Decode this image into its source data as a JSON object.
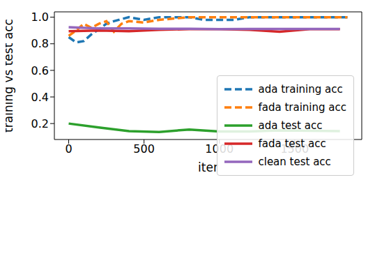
{
  "chart_data": {
    "type": "line",
    "x_label": "iter",
    "y_label": "training vs test acc",
    "xlim": [
      -95,
      1945
    ],
    "xticks": [
      0,
      500,
      1000,
      1500
    ],
    "ylim": [
      0.08,
      1.04
    ],
    "yticks": [
      0.2,
      0.4,
      0.6,
      0.8,
      {
        "value": 1,
        "label": "1.0"
      }
    ],
    "grid": true,
    "legend": "right",
    "series": [
      {
        "name": "ada training acc",
        "color": "#1f77b4",
        "line_style": "dashed",
        "x": [
          0,
          50,
          100,
          150,
          200,
          250,
          300,
          400,
          500,
          600,
          800,
          900,
          1000,
          1100,
          1200,
          1400,
          1600,
          1850
        ],
        "values": [
          0.85,
          0.81,
          0.82,
          0.87,
          0.91,
          0.95,
          0.97,
          1.0,
          0.98,
          1.0,
          1.0,
          0.98,
          0.98,
          0.98,
          1.0,
          1.0,
          1.0,
          1.0
        ]
      },
      {
        "name": "fada training acc",
        "color": "#ff7f0e",
        "line_style": "dashed",
        "x": [
          0,
          50,
          100,
          150,
          200,
          250,
          300,
          350,
          400,
          500,
          600,
          700,
          800,
          1000,
          1200,
          1400,
          1600,
          1850
        ],
        "values": [
          0.86,
          0.9,
          0.95,
          0.92,
          0.95,
          0.97,
          0.89,
          0.95,
          0.97,
          0.96,
          0.98,
          0.99,
          1.0,
          1.0,
          1.0,
          1.0,
          1.0,
          1.0
        ]
      },
      {
        "name": "ada test acc",
        "color": "#2ca02c",
        "line_style": "solid",
        "x": [
          0,
          200,
          400,
          600,
          800,
          1000,
          1200,
          1400,
          1600,
          1800
        ],
        "values": [
          0.2,
          0.17,
          0.143,
          0.137,
          0.155,
          0.14,
          0.14,
          0.148,
          0.145,
          0.143
        ]
      },
      {
        "name": "fada test acc",
        "color": "#d62728",
        "line_style": "solid",
        "x": [
          0,
          200,
          400,
          600,
          800,
          1000,
          1200,
          1400,
          1600,
          1800
        ],
        "values": [
          0.895,
          0.9,
          0.895,
          0.905,
          0.91,
          0.91,
          0.905,
          0.89,
          0.91,
          0.91
        ]
      },
      {
        "name": "clean test acc",
        "color": "#9467bd",
        "line_style": "solid",
        "x": [
          0,
          200,
          400,
          600,
          800,
          1000,
          1200,
          1400,
          1600,
          1800
        ],
        "values": [
          0.925,
          0.915,
          0.915,
          0.913,
          0.913,
          0.91,
          0.912,
          0.912,
          0.912,
          0.912
        ]
      }
    ]
  }
}
